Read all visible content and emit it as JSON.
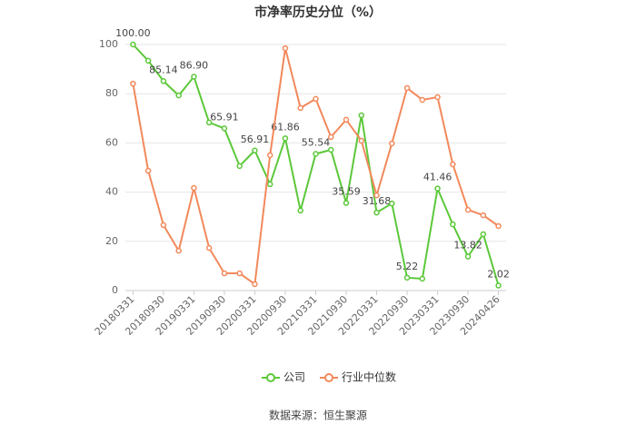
{
  "chart_data": {
    "type": "line",
    "title": "市净率历史分位（%）",
    "source": "数据来源：恒生聚源",
    "categories": [
      "20180331",
      null,
      "20180930",
      null,
      "20190331",
      null,
      "20190930",
      null,
      "20200331",
      null,
      "20200930",
      null,
      "20210331",
      null,
      "20210930",
      null,
      "20220331",
      null,
      "20220930",
      null,
      "20230331",
      null,
      "20230930",
      null,
      "20240426"
    ],
    "series": [
      {
        "name": "公司",
        "color": "#5cc83a",
        "values": [
          100.0,
          93.4,
          85.14,
          79.3,
          86.9,
          68.3,
          65.91,
          50.6,
          56.91,
          43.2,
          61.86,
          32.5,
          55.54,
          57.2,
          35.59,
          71.2,
          31.68,
          35.4,
          5.22,
          4.8,
          41.46,
          26.9,
          13.82,
          22.9,
          2.02
        ],
        "value_labels": [
          "100.00",
          null,
          "85.14",
          null,
          "86.90",
          null,
          "65.91",
          null,
          "56.91",
          null,
          "61.86",
          null,
          "55.54",
          null,
          "35.59",
          null,
          "31.68",
          null,
          "5.22",
          null,
          "41.46",
          null,
          "13.82",
          null,
          "2.02"
        ]
      },
      {
        "name": "行业中位数",
        "color": "#f2895c",
        "values": [
          84.1,
          48.7,
          26.6,
          16.2,
          41.7,
          17.3,
          7.0,
          7.0,
          2.6,
          55.0,
          98.5,
          74.2,
          77.9,
          62.4,
          69.4,
          60.9,
          38.7,
          59.8,
          82.3,
          77.5,
          78.6,
          51.3,
          32.8,
          30.6,
          26.2
        ]
      }
    ],
    "ylim": [
      0,
      100
    ],
    "yticks": [
      0,
      20,
      40,
      60,
      80,
      100
    ],
    "grid": true,
    "legend": "bottom"
  }
}
